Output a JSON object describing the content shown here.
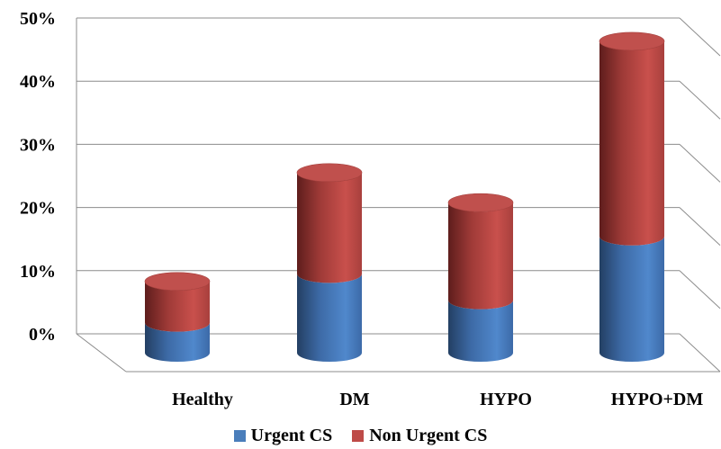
{
  "chart_data": {
    "type": "bar",
    "subtype": "stacked-3d-cylinder",
    "categories": [
      "Healthy",
      "DM",
      "HYPO",
      "HYPO+DM"
    ],
    "series": [
      {
        "name": "Urgent CS",
        "values": [
          4,
          10.5,
          7,
          15.5
        ],
        "color": "#4a7ebb"
      },
      {
        "name": "Non Urgent CS",
        "values": [
          5.5,
          13.5,
          13,
          26
        ],
        "color": "#be4b48"
      }
    ],
    "y_ticks": [
      "0%",
      "10%",
      "20%",
      "30%",
      "40%",
      "50%"
    ],
    "ylim": [
      0,
      50
    ],
    "grid": true,
    "legend_position": "bottom"
  }
}
